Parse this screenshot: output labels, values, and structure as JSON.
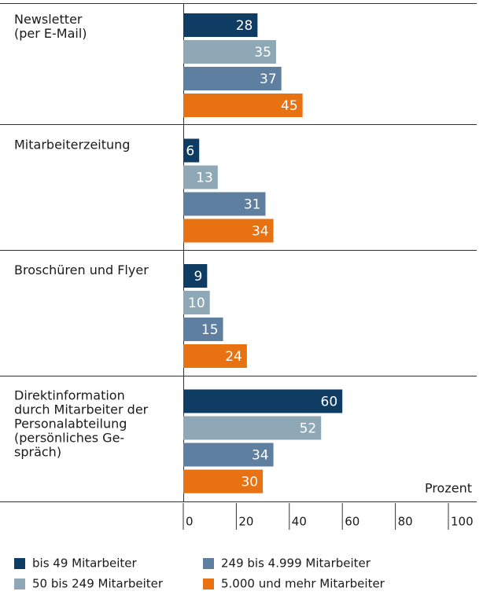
{
  "chart_data": {
    "type": "bar",
    "orientation": "horizontal",
    "categories": [
      "Newsletter\n(per E-Mail)",
      "Mitarbeiterzeitung",
      "Broschüren und Flyer",
      "Direktinformation\ndurch Mitarbeiter der\nPersonalabteilung\n(persönliches Ge-\nspräch)"
    ],
    "series": [
      {
        "name": "bis 49 Mitarbeiter",
        "color": "#0f3c63",
        "values": [
          28,
          6,
          9,
          60
        ]
      },
      {
        "name": "50 bis 249 Mitarbeiter",
        "color": "#8ea8b6",
        "values": [
          35,
          13,
          10,
          52
        ]
      },
      {
        "name": "249 bis 4.999 Mitarbeiter",
        "color": "#5f7fa1",
        "values": [
          37,
          31,
          15,
          34
        ]
      },
      {
        "name": "5.000 und mehr Mitarbeiter",
        "color": "#e87211",
        "values": [
          45,
          34,
          24,
          30
        ]
      }
    ],
    "x_label": "Prozent",
    "xlim": [
      0,
      100
    ],
    "xticks": [
      0,
      20,
      40,
      60,
      80,
      100
    ]
  }
}
